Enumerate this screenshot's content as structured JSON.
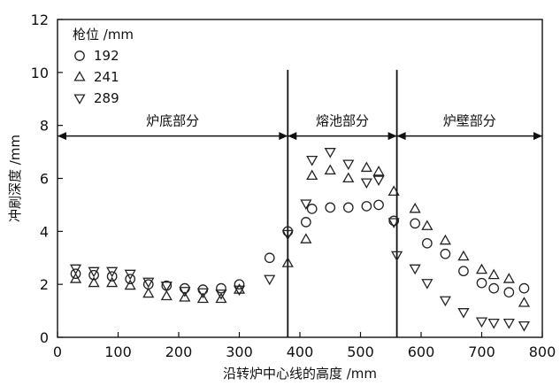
{
  "chart_data": {
    "type": "scatter",
    "xlabel": "沿转炉中心线的高度 /mm",
    "ylabel": "冲刷深度 /mm",
    "xlim": [
      0,
      800
    ],
    "ylim": [
      0,
      12
    ],
    "xticks": [
      0,
      100,
      200,
      300,
      400,
      500,
      600,
      700,
      800
    ],
    "yticks": [
      0,
      2,
      4,
      6,
      8,
      10,
      12
    ],
    "grid": false,
    "legend_title": "枪位 /mm",
    "legend_position": "top-left",
    "region_dividers": [
      380,
      560
    ],
    "regions": [
      {
        "label": "炉底部分",
        "from": 0,
        "to": 380
      },
      {
        "label": "熔池部分",
        "from": 380,
        "to": 560
      },
      {
        "label": "炉壁部分",
        "from": 560,
        "to": 800
      }
    ],
    "region_arrow_y": 7.6,
    "series": [
      {
        "name": "192",
        "marker": "circle",
        "points": [
          [
            30,
            2.4
          ],
          [
            60,
            2.35
          ],
          [
            90,
            2.3
          ],
          [
            120,
            2.2
          ],
          [
            150,
            2.0
          ],
          [
            180,
            1.95
          ],
          [
            210,
            1.85
          ],
          [
            240,
            1.8
          ],
          [
            270,
            1.85
          ],
          [
            300,
            2.0
          ],
          [
            350,
            3.0
          ],
          [
            380,
            4.0
          ],
          [
            410,
            4.35
          ],
          [
            420,
            4.85
          ],
          [
            450,
            4.9
          ],
          [
            480,
            4.9
          ],
          [
            510,
            4.95
          ],
          [
            530,
            5.0
          ],
          [
            555,
            4.4
          ],
          [
            590,
            4.3
          ],
          [
            610,
            3.55
          ],
          [
            640,
            3.15
          ],
          [
            670,
            2.5
          ],
          [
            700,
            2.05
          ],
          [
            720,
            1.85
          ],
          [
            745,
            1.7
          ],
          [
            770,
            1.85
          ]
        ]
      },
      {
        "name": "241",
        "marker": "triangle-up",
        "points": [
          [
            30,
            2.2
          ],
          [
            60,
            2.05
          ],
          [
            90,
            2.05
          ],
          [
            120,
            1.95
          ],
          [
            150,
            1.65
          ],
          [
            180,
            1.55
          ],
          [
            210,
            1.5
          ],
          [
            240,
            1.45
          ],
          [
            270,
            1.45
          ],
          [
            300,
            1.8
          ],
          [
            380,
            2.8
          ],
          [
            410,
            3.7
          ],
          [
            420,
            6.1
          ],
          [
            450,
            6.3
          ],
          [
            480,
            6.0
          ],
          [
            510,
            6.4
          ],
          [
            530,
            6.25
          ],
          [
            555,
            5.5
          ],
          [
            590,
            4.85
          ],
          [
            610,
            4.2
          ],
          [
            640,
            3.65
          ],
          [
            670,
            3.05
          ],
          [
            700,
            2.55
          ],
          [
            720,
            2.35
          ],
          [
            745,
            2.2
          ],
          [
            770,
            1.3
          ]
        ]
      },
      {
        "name": "289",
        "marker": "triangle-down",
        "points": [
          [
            30,
            2.6
          ],
          [
            60,
            2.5
          ],
          [
            90,
            2.5
          ],
          [
            120,
            2.4
          ],
          [
            150,
            2.1
          ],
          [
            180,
            1.95
          ],
          [
            210,
            1.75
          ],
          [
            240,
            1.7
          ],
          [
            270,
            1.65
          ],
          [
            300,
            1.8
          ],
          [
            350,
            2.2
          ],
          [
            380,
            3.9
          ],
          [
            410,
            5.05
          ],
          [
            420,
            6.7
          ],
          [
            450,
            7.0
          ],
          [
            480,
            6.55
          ],
          [
            510,
            5.85
          ],
          [
            530,
            5.95
          ],
          [
            555,
            4.35
          ],
          [
            560,
            3.1
          ],
          [
            590,
            2.6
          ],
          [
            610,
            2.05
          ],
          [
            640,
            1.4
          ],
          [
            670,
            0.95
          ],
          [
            700,
            0.6
          ],
          [
            720,
            0.55
          ],
          [
            745,
            0.55
          ],
          [
            770,
            0.45
          ]
        ]
      }
    ]
  }
}
